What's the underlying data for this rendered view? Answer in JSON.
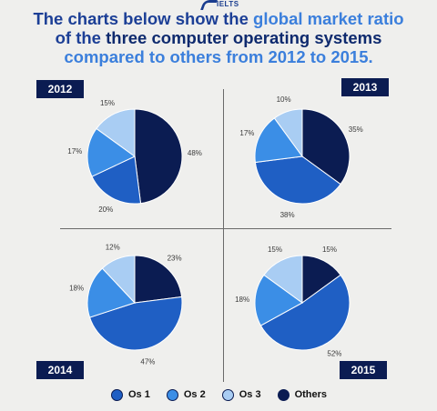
{
  "logo": {
    "text": "IELTS"
  },
  "headline": {
    "line1_part1": "The charts below show the ",
    "line1_part2": "global market ratio",
    "line2_part1": "of the ",
    "line2_part2": "three computer operating systems",
    "line3": "compared to others from 2012 to 2015."
  },
  "colors": {
    "Os 1": "#1f5fc4",
    "Os 2": "#3b8ee6",
    "Os 3": "#a9cdf3",
    "Others": "#0b1c52",
    "label_bg": "#0b1c52"
  },
  "chart_data": [
    {
      "type": "pie",
      "title": "2012",
      "categories": [
        "Os 1",
        "Os 2",
        "Os 3",
        "Others"
      ],
      "values": [
        20,
        17,
        15,
        48
      ],
      "labels": [
        "20%",
        "17%",
        "15%",
        "48%"
      ]
    },
    {
      "type": "pie",
      "title": "2013",
      "categories": [
        "Os 1",
        "Os 2",
        "Os 3",
        "Others"
      ],
      "values": [
        38,
        17,
        10,
        35
      ],
      "labels": [
        "38%",
        "17%",
        "10%",
        "35%"
      ]
    },
    {
      "type": "pie",
      "title": "2014",
      "categories": [
        "Os 1",
        "Os 2",
        "Os 3",
        "Others"
      ],
      "values": [
        47,
        18,
        12,
        23
      ],
      "labels": [
        "47%",
        "18%",
        "12%",
        "23%"
      ]
    },
    {
      "type": "pie",
      "title": "2015",
      "categories": [
        "Os 1",
        "Os 2",
        "Os 3",
        "Others"
      ],
      "values": [
        52,
        18,
        15,
        15
      ],
      "labels": [
        "52%",
        "18%",
        "15%",
        "15%"
      ]
    }
  ],
  "legend": [
    {
      "label": "Os 1",
      "color": "#1f5fc4"
    },
    {
      "label": "Os 2",
      "color": "#3b8ee6"
    },
    {
      "label": "Os 3",
      "color": "#a9cdf3"
    },
    {
      "label": "Others",
      "color": "#0b1c52"
    }
  ]
}
